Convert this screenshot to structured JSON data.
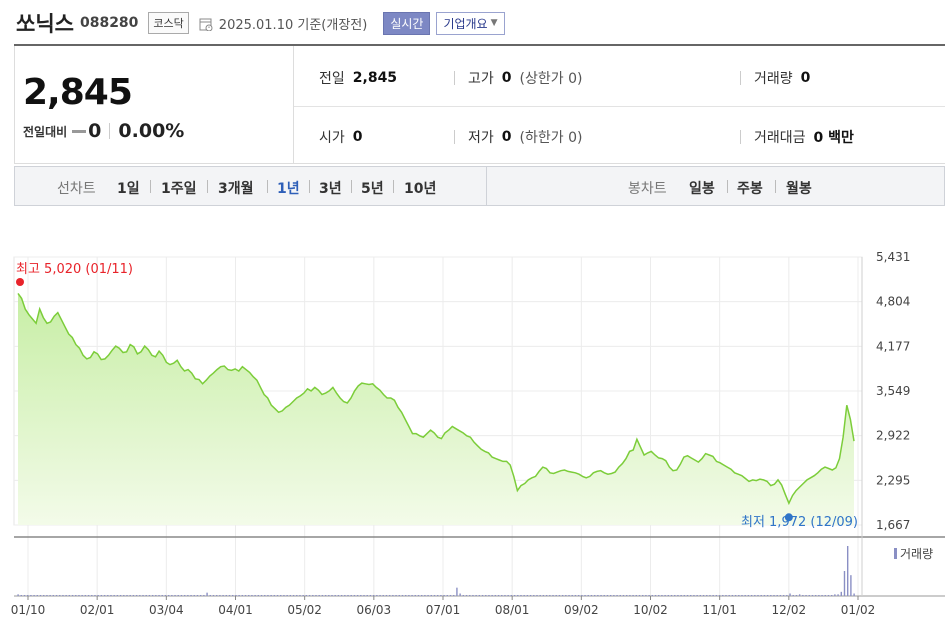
{
  "header": {
    "name": "쏘닉스",
    "code": "088280",
    "market": "코스닥",
    "date_text": "2025.01.10 기준(개장전)",
    "realtime_label": "실시간",
    "company_label": "기업개요"
  },
  "price": {
    "current": "2,845",
    "change_label": "전일대비",
    "change_value": "0",
    "change_pct": "0.00%"
  },
  "info": {
    "prev_close_label": "전일",
    "prev_close": "2,845",
    "high_label": "고가",
    "high": "0",
    "upper_limit": "(상한가 0)",
    "volume_label": "거래량",
    "volume": "0",
    "open_label": "시가",
    "open": "0",
    "low_label": "저가",
    "low": "0",
    "lower_limit": "(하한가 0)",
    "amount_label": "거래대금",
    "amount": "0 백만"
  },
  "period": {
    "line_label": "선차트",
    "line_items": [
      "1일",
      "1주일",
      "3개월",
      "1년",
      "3년",
      "5년",
      "10년"
    ],
    "active_item": "1년",
    "candle_label": "봉차트",
    "candle_items": [
      "일봉",
      "주봉",
      "월봉"
    ]
  },
  "colors": {
    "line": "#7ccd3a",
    "fill_top": "#c7eea5",
    "fill_bottom": "#f3fbe9",
    "max_marker": "#e8232a",
    "min_marker": "#2f74c8",
    "volume_bar": "#8a8fc4",
    "active_period": "#2e5fb8"
  },
  "chart_data": {
    "type": "area",
    "y_ticks": [
      "5,431",
      "4,804",
      "4,177",
      "3,549",
      "2,922",
      "2,295",
      "1,667"
    ],
    "ylim": [
      1667,
      5431
    ],
    "x_ticks": [
      "01/10",
      "02/01",
      "03/04",
      "04/01",
      "05/02",
      "06/03",
      "07/01",
      "08/01",
      "09/02",
      "10/02",
      "11/01",
      "12/02",
      "01/02"
    ],
    "max_label": "최고 5,020 (01/11)",
    "min_label": "최저 1,972 (12/09)",
    "volume_label": "거래량",
    "series": [
      {
        "values": [
          4920,
          4850,
          4700,
          4620,
          4560,
          4500,
          4700,
          4580,
          4500,
          4520,
          4600,
          4650,
          4550,
          4450,
          4350,
          4300,
          4200,
          4150,
          4050,
          4000,
          4020,
          4100,
          4070,
          3990,
          4000,
          4050,
          4120,
          4180,
          4150,
          4090,
          4100,
          4200,
          4170,
          4070,
          4100,
          4180,
          4130,
          4050,
          4030,
          4110,
          4050,
          3950,
          3920,
          3940,
          3980,
          3890,
          3830,
          3850,
          3800,
          3720,
          3710,
          3650,
          3700,
          3760,
          3800,
          3850,
          3890,
          3900,
          3850,
          3840,
          3860,
          3830,
          3890,
          3850,
          3810,
          3750,
          3700,
          3600,
          3500,
          3450,
          3350,
          3300,
          3250,
          3270,
          3320,
          3350,
          3400,
          3450,
          3480,
          3520,
          3580,
          3550,
          3600,
          3560,
          3500,
          3520,
          3550,
          3600,
          3520,
          3450,
          3400,
          3380,
          3450,
          3550,
          3620,
          3660,
          3650,
          3640,
          3650,
          3600,
          3560,
          3500,
          3450,
          3450,
          3420,
          3320,
          3250,
          3150,
          3050,
          2950,
          2950,
          2920,
          2900,
          2950,
          3000,
          2960,
          2900,
          2880,
          2960,
          3000,
          3050,
          3020,
          2990,
          2960,
          2920,
          2900,
          2830,
          2780,
          2730,
          2700,
          2680,
          2620,
          2600,
          2580,
          2560,
          2560,
          2510,
          2350,
          2150,
          2220,
          2250,
          2300,
          2330,
          2350,
          2420,
          2480,
          2460,
          2400,
          2390,
          2410,
          2430,
          2440,
          2420,
          2410,
          2400,
          2380,
          2350,
          2330,
          2350,
          2400,
          2420,
          2430,
          2400,
          2380,
          2390,
          2410,
          2480,
          2530,
          2600,
          2700,
          2720,
          2870,
          2760,
          2650,
          2680,
          2700,
          2650,
          2610,
          2600,
          2570,
          2480,
          2430,
          2440,
          2520,
          2620,
          2640,
          2610,
          2580,
          2550,
          2600,
          2670,
          2650,
          2630,
          2560,
          2540,
          2510,
          2480,
          2450,
          2400,
          2380,
          2360,
          2320,
          2280,
          2300,
          2290,
          2310,
          2300,
          2280,
          2220,
          2240,
          2300,
          2230,
          2100,
          1972,
          2080,
          2150,
          2200,
          2250,
          2300,
          2330,
          2360,
          2400,
          2450,
          2480,
          2460,
          2440,
          2470,
          2600,
          2900,
          3350,
          3150,
          2845
        ]
      }
    ],
    "volume": [
      2,
      1,
      1,
      1,
      1,
      1,
      1,
      1,
      1,
      1,
      1,
      1,
      1,
      1,
      1,
      1,
      1,
      1,
      1,
      1,
      1,
      1,
      1,
      1,
      1,
      1,
      1,
      1,
      1,
      1,
      1,
      1,
      1,
      1,
      1,
      1,
      1,
      1,
      1,
      1,
      1,
      1,
      1,
      1,
      1,
      1,
      1,
      1,
      1,
      1,
      1,
      1,
      1,
      1,
      1,
      1,
      1,
      1,
      1,
      4,
      1,
      1,
      1,
      1,
      1,
      1,
      1,
      1,
      1,
      1,
      1,
      1,
      1,
      1,
      1,
      1,
      1,
      1,
      1,
      1,
      1,
      1,
      1,
      1,
      1,
      1,
      1,
      1,
      1,
      1,
      1,
      1,
      1,
      1,
      1,
      1,
      1,
      1,
      1,
      1,
      1,
      1,
      1,
      1,
      1,
      1,
      1,
      1,
      1,
      1,
      1,
      1,
      1,
      1,
      1,
      1,
      1,
      1,
      1,
      1,
      1,
      1,
      1,
      1,
      1,
      1,
      1,
      1,
      1,
      1,
      1,
      1,
      1,
      1,
      1,
      1,
      1,
      10,
      3,
      1,
      1,
      1,
      1,
      1,
      1,
      1,
      1,
      1,
      1,
      1,
      1,
      1,
      1,
      1,
      1,
      1,
      1,
      1,
      1,
      1,
      1,
      1,
      1,
      1,
      1,
      1,
      1,
      1,
      1,
      1,
      1,
      1,
      1,
      1,
      1,
      1,
      1,
      1,
      1,
      1,
      1,
      1,
      1,
      1,
      1,
      1,
      1,
      1,
      1,
      1,
      1,
      1,
      1,
      1,
      1,
      1,
      1,
      1,
      1,
      1,
      1,
      1,
      1,
      1,
      1,
      1,
      1,
      1,
      1,
      1,
      1,
      1,
      1,
      1,
      1,
      1,
      1,
      1,
      1,
      1,
      1,
      1,
      1,
      1,
      1,
      1,
      1,
      1,
      1,
      1,
      1,
      1,
      1,
      1,
      1,
      1,
      1,
      1,
      1,
      1,
      1,
      3,
      1,
      1,
      2,
      1,
      1,
      1,
      1,
      1,
      1,
      1,
      1,
      1,
      1,
      2,
      2,
      5,
      30,
      60,
      25,
      3
    ]
  },
  "grid": true
}
